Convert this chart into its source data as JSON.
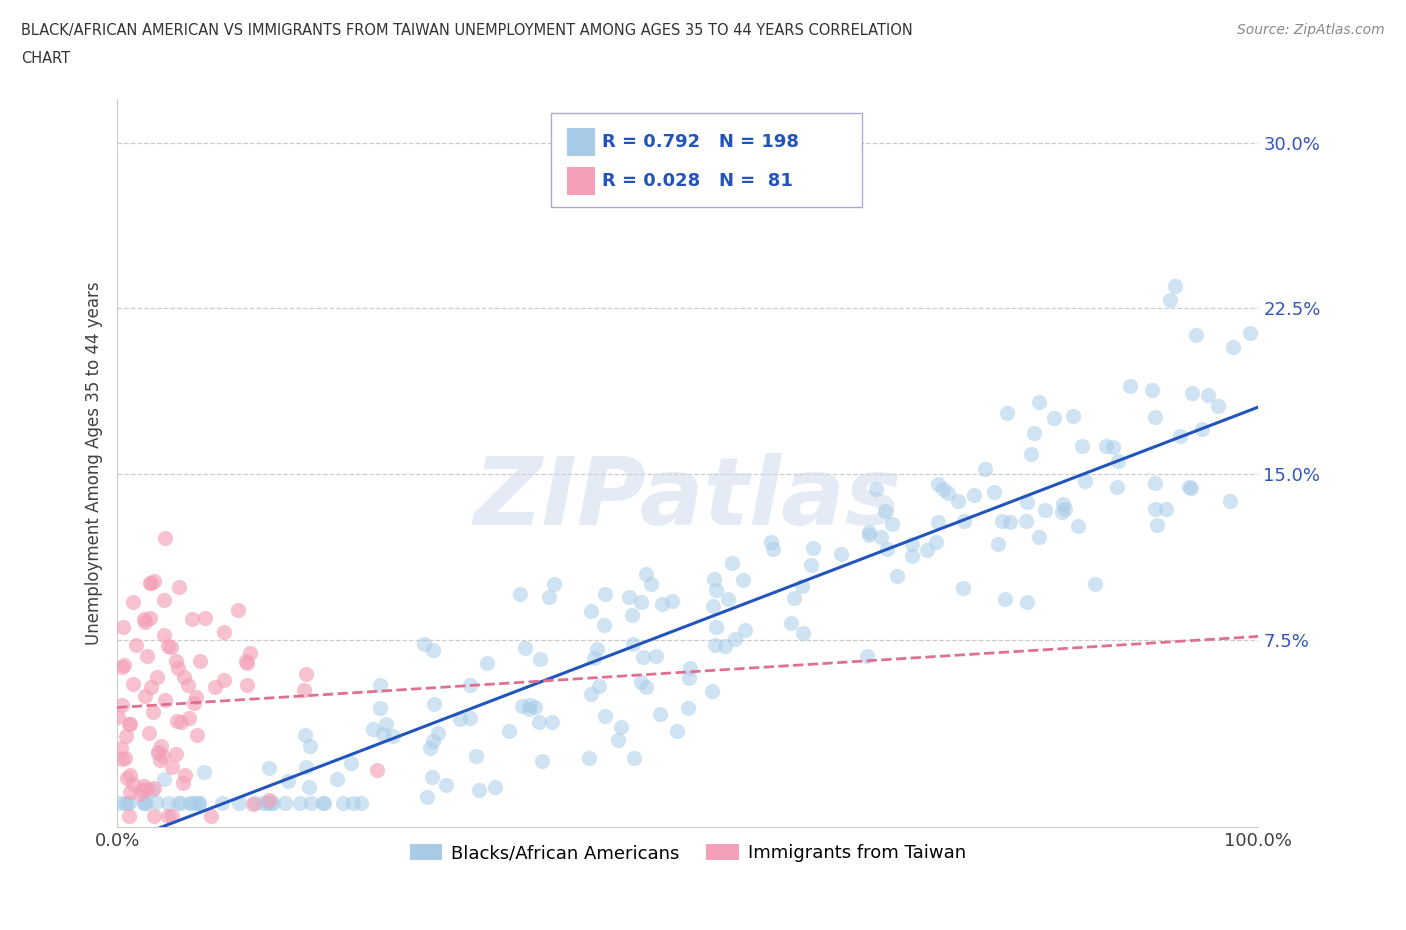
{
  "title_line1": "BLACK/AFRICAN AMERICAN VS IMMIGRANTS FROM TAIWAN UNEMPLOYMENT AMONG AGES 35 TO 44 YEARS CORRELATION",
  "title_line2": "CHART",
  "source": "Source: ZipAtlas.com",
  "ylabel": "Unemployment Among Ages 35 to 44 years",
  "xmin": 0.0,
  "xmax": 1.0,
  "ymin": -0.01,
  "ymax": 0.32,
  "yticks": [
    0.075,
    0.15,
    0.225,
    0.3
  ],
  "ytick_labels": [
    "7.5%",
    "15.0%",
    "22.5%",
    "30.0%"
  ],
  "xticks": [
    0.0,
    0.1,
    0.2,
    0.3,
    0.4,
    0.5,
    0.6,
    0.7,
    0.8,
    0.9,
    1.0
  ],
  "xtick_labels": [
    "0.0%",
    "",
    "",
    "",
    "",
    "",
    "",
    "",
    "",
    "",
    "100.0%"
  ],
  "blue_R": 0.792,
  "blue_N": 198,
  "pink_R": 0.028,
  "pink_N": 81,
  "blue_color": "#a8cce8",
  "pink_color": "#f4a0b8",
  "blue_line_color": "#2255bb",
  "pink_line_color": "#e07090",
  "legend_label_blue": "Blacks/African Americans",
  "legend_label_pink": "Immigrants from Taiwan",
  "watermark": "ZIPatlas",
  "background_color": "#ffffff",
  "grid_color": "#cccccc"
}
